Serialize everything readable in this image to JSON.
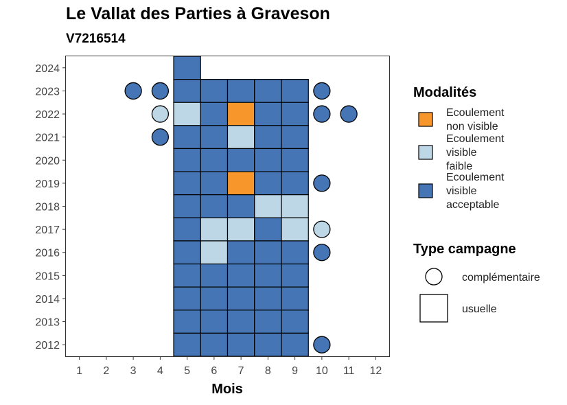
{
  "chart_data": {
    "type": "heatmap",
    "title": "Le Vallat des Parties à Graveson",
    "subtitle": "V7216514",
    "xlabel": "Mois",
    "ylabel": "",
    "x_ticks": [
      1,
      2,
      3,
      4,
      5,
      6,
      7,
      8,
      9,
      10,
      11,
      12
    ],
    "y_ticks": [
      2012,
      2013,
      2014,
      2015,
      2016,
      2017,
      2018,
      2019,
      2020,
      2021,
      2022,
      2023,
      2024
    ],
    "xlim": [
      0.5,
      12.5
    ],
    "ylim": [
      2011.5,
      2024.5
    ],
    "grid": false,
    "colors": {
      "Ecoulement non visible": "#f7962a",
      "Ecoulement visible faible": "#bdd7e7",
      "Ecoulement visible acceptable": "#4575b4"
    },
    "legend_modalites": {
      "title": "Modalités",
      "items": [
        {
          "key": "Ecoulement non visible",
          "lines": [
            "Ecoulement",
            "non visible"
          ]
        },
        {
          "key": "Ecoulement visible faible",
          "lines": [
            "Ecoulement",
            "visible",
            "faible"
          ]
        },
        {
          "key": "Ecoulement visible acceptable",
          "lines": [
            "Ecoulement",
            "visible",
            "acceptable"
          ]
        }
      ]
    },
    "legend_type": {
      "title": "Type campagne",
      "items": [
        {
          "shape": "circle",
          "label": "complémentaire"
        },
        {
          "shape": "square",
          "label": "usuelle"
        }
      ]
    },
    "usuelle": [
      {
        "year": 2024,
        "months": [
          5
        ],
        "values": [
          "A"
        ]
      },
      {
        "year": 2023,
        "months": [
          5,
          6,
          7,
          8,
          9
        ],
        "values": [
          "A",
          "A",
          "A",
          "A",
          "A"
        ]
      },
      {
        "year": 2022,
        "months": [
          5,
          6,
          7,
          8,
          9
        ],
        "values": [
          "F",
          "A",
          "N",
          "A",
          "A"
        ]
      },
      {
        "year": 2021,
        "months": [
          5,
          6,
          7,
          8,
          9
        ],
        "values": [
          "A",
          "A",
          "F",
          "A",
          "A"
        ]
      },
      {
        "year": 2020,
        "months": [
          5,
          6,
          7,
          8,
          9
        ],
        "values": [
          "A",
          "A",
          "A",
          "A",
          "A"
        ]
      },
      {
        "year": 2019,
        "months": [
          5,
          6,
          7,
          8,
          9
        ],
        "values": [
          "A",
          "A",
          "N",
          "A",
          "A"
        ]
      },
      {
        "year": 2018,
        "months": [
          5,
          6,
          7,
          8,
          9
        ],
        "values": [
          "A",
          "A",
          "A",
          "F",
          "F"
        ]
      },
      {
        "year": 2017,
        "months": [
          5,
          6,
          7,
          8,
          9
        ],
        "values": [
          "A",
          "F",
          "F",
          "A",
          "F"
        ]
      },
      {
        "year": 2016,
        "months": [
          5,
          6,
          7,
          8,
          9
        ],
        "values": [
          "A",
          "F",
          "A",
          "A",
          "A"
        ]
      },
      {
        "year": 2015,
        "months": [
          5,
          6,
          7,
          8,
          9
        ],
        "values": [
          "A",
          "A",
          "A",
          "A",
          "A"
        ]
      },
      {
        "year": 2014,
        "months": [
          5,
          6,
          7,
          8,
          9
        ],
        "values": [
          "A",
          "A",
          "A",
          "A",
          "A"
        ]
      },
      {
        "year": 2013,
        "months": [
          5,
          6,
          7,
          8,
          9
        ],
        "values": [
          "A",
          "A",
          "A",
          "A",
          "A"
        ]
      },
      {
        "year": 2012,
        "months": [
          5,
          6,
          7,
          8,
          9
        ],
        "values": [
          "A",
          "A",
          "A",
          "A",
          "A"
        ]
      }
    ],
    "value_codes": {
      "N": "Ecoulement non visible",
      "F": "Ecoulement visible faible",
      "A": "Ecoulement visible acceptable"
    },
    "complementaire": [
      {
        "year": 2023,
        "month": 3,
        "value": "A"
      },
      {
        "year": 2023,
        "month": 4,
        "value": "A"
      },
      {
        "year": 2023,
        "month": 10,
        "value": "A"
      },
      {
        "year": 2022,
        "month": 4,
        "value": "F"
      },
      {
        "year": 2022,
        "month": 10,
        "value": "A"
      },
      {
        "year": 2022,
        "month": 11,
        "value": "A"
      },
      {
        "year": 2021,
        "month": 4,
        "value": "A"
      },
      {
        "year": 2019,
        "month": 10,
        "value": "A"
      },
      {
        "year": 2017,
        "month": 10,
        "value": "F"
      },
      {
        "year": 2016,
        "month": 10,
        "value": "A"
      },
      {
        "year": 2012,
        "month": 10,
        "value": "A"
      }
    ]
  }
}
